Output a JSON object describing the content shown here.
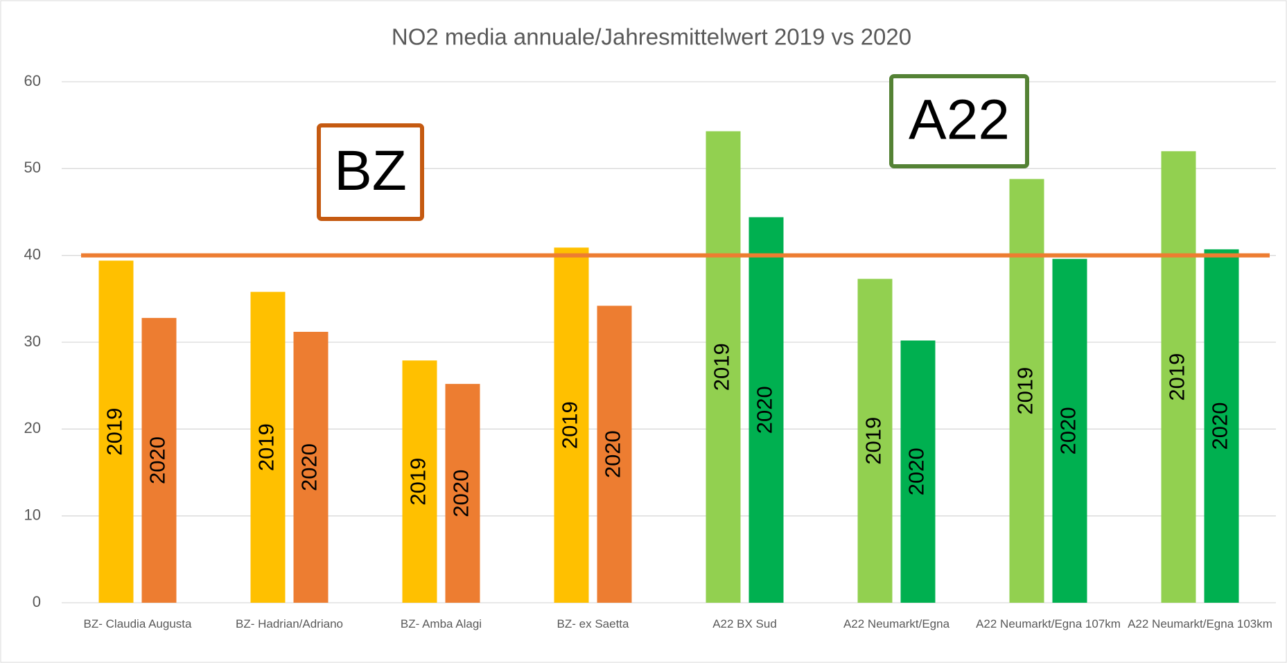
{
  "chart_data": {
    "type": "bar",
    "title": "NO2 media annuale/Jahresmittelwert 2019 vs 2020",
    "categories": [
      "BZ- Claudia Augusta",
      "BZ- Hadrian/Adriano",
      "BZ- Amba Alagi",
      "BZ- ex Saetta",
      "A22 BX Sud",
      "A22 Neumarkt/Egna",
      "A22 Neumarkt/Egna 107km",
      "A22 Neumarkt/Egna 103km"
    ],
    "series": [
      {
        "name": "2019",
        "colors": [
          "#ffc000",
          "#ffc000",
          "#ffc000",
          "#ffc000",
          "#92d050",
          "#92d050",
          "#92d050",
          "#92d050"
        ],
        "values": [
          39.4,
          35.8,
          27.9,
          40.9,
          54.3,
          37.3,
          48.8,
          52.0
        ]
      },
      {
        "name": "2020",
        "colors": [
          "#ed7d31",
          "#ed7d31",
          "#ed7d31",
          "#ed7d31",
          "#00b050",
          "#00b050",
          "#00b050",
          "#00b050"
        ],
        "values": [
          32.8,
          31.2,
          25.2,
          34.2,
          44.4,
          30.2,
          39.6,
          40.7
        ]
      }
    ],
    "ylim": [
      0,
      60
    ],
    "yticks": [
      0,
      10,
      20,
      30,
      40,
      50,
      60
    ],
    "grid": true,
    "reference_line": {
      "value": 40,
      "color": "#ed7d31"
    },
    "annotations": [
      {
        "text": "BZ",
        "color": "#c55a11"
      },
      {
        "text": "A22",
        "color": "#548235"
      }
    ]
  }
}
